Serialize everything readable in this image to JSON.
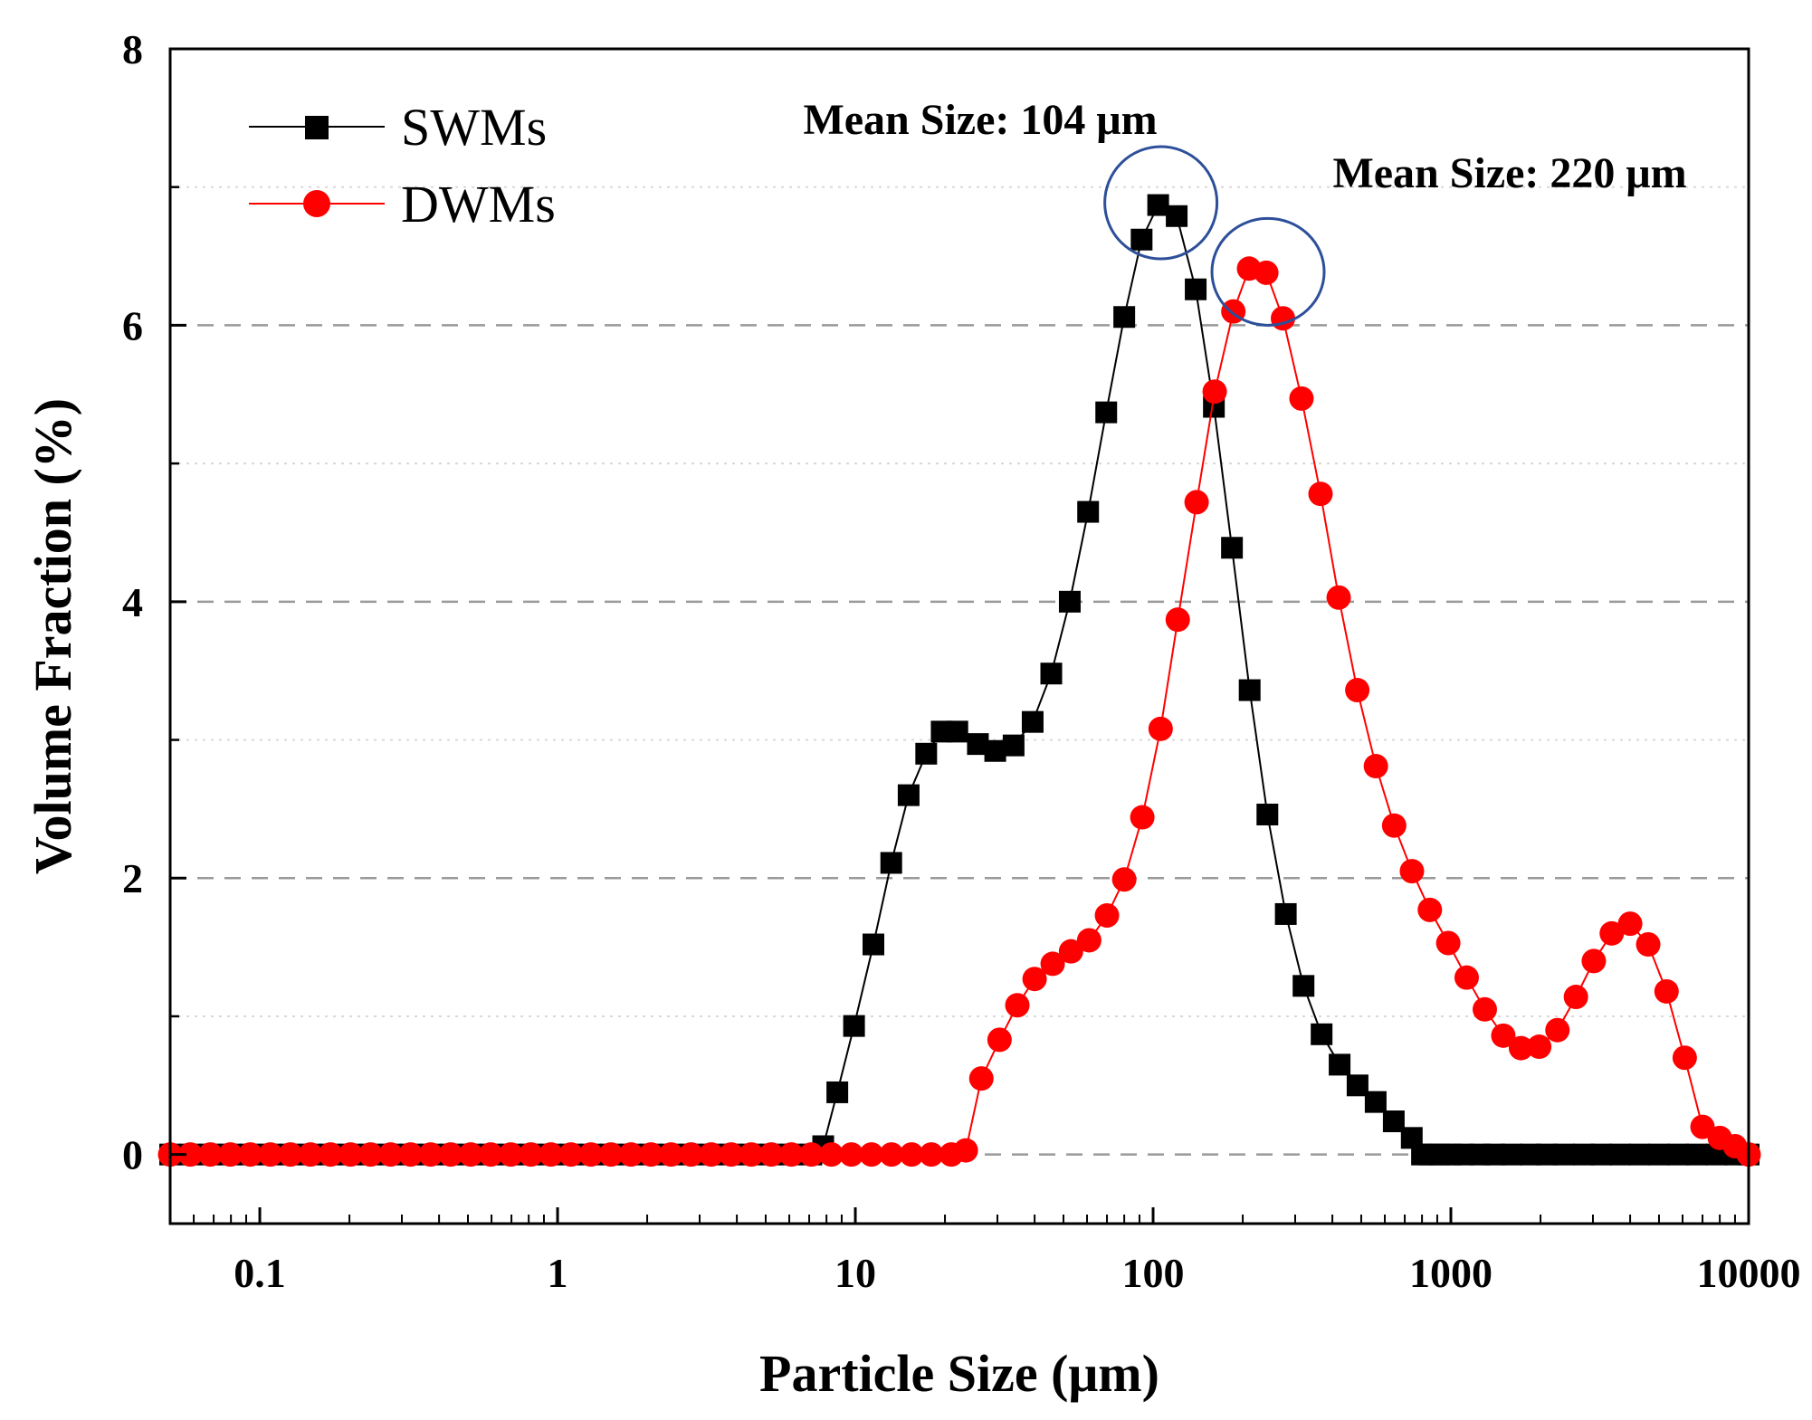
{
  "chart_data": {
    "type": "scatter",
    "xlabel": "Particle Size (μm)",
    "ylabel": "Volume  Fraction (%)",
    "xscale": "log",
    "xlim": [
      0.05,
      10000
    ],
    "ylim": [
      -0.5,
      8
    ],
    "x_ticks": [
      0.1,
      1,
      10,
      100,
      1000,
      10000
    ],
    "x_tick_labels": [
      "0.1",
      "1",
      "10",
      "100",
      "1000",
      "10000"
    ],
    "y_ticks": [
      0,
      2,
      4,
      6,
      8
    ],
    "y_tick_labels": [
      "0",
      "2",
      "4",
      "6",
      "8"
    ],
    "grid": "horizontal-dashed",
    "legend_position": "top-left",
    "series": [
      {
        "name": "SWMs",
        "color": "#000000",
        "marker": "square",
        "x": [
          0.05,
          0.0584,
          0.0682,
          0.0796,
          0.0929,
          0.1085,
          0.1267,
          0.1479,
          0.1727,
          0.2016,
          0.2354,
          0.2749,
          0.3209,
          0.3747,
          0.4375,
          0.5109,
          0.5965,
          0.6964,
          0.8132,
          0.9494,
          1.109,
          1.294,
          1.511,
          1.764,
          2.06,
          2.405,
          2.809,
          3.279,
          3.829,
          4.471,
          5.221,
          6.096,
          7.118,
          7.8,
          8.7,
          9.9,
          11.5,
          13.2,
          15.1,
          17.3,
          19.5,
          22.0,
          25.8,
          29.5,
          34.0,
          39.4,
          45.5,
          52.5,
          60.5,
          69.6,
          80.0,
          91.5,
          104,
          120,
          139,
          160,
          184,
          211,
          242,
          279,
          320,
          368,
          423,
          486,
          559,
          643,
          739,
          800,
          850,
          920,
          1000,
          1100,
          1250,
          1400,
          1600,
          1850,
          2100,
          2400,
          2800,
          3200,
          3700,
          4300,
          5000,
          5800,
          6700,
          7800,
          9000,
          10000
        ],
        "y": [
          0,
          0,
          0,
          0,
          0,
          0,
          0,
          0,
          0,
          0,
          0,
          0,
          0,
          0,
          0,
          0,
          0,
          0,
          0,
          0,
          0,
          0,
          0,
          0,
          0,
          0,
          0,
          0,
          0,
          0,
          0,
          0,
          0,
          0.06,
          0.45,
          0.93,
          1.52,
          2.11,
          2.6,
          2.9,
          3.06,
          3.06,
          2.97,
          2.92,
          2.96,
          3.13,
          3.48,
          4.0,
          4.65,
          5.37,
          6.06,
          6.62,
          6.87,
          6.79,
          6.26,
          5.41,
          4.39,
          3.36,
          2.46,
          1.74,
          1.22,
          0.87,
          0.65,
          0.5,
          0.38,
          0.24,
          0.12,
          0,
          0,
          0,
          0,
          0,
          0,
          0,
          0,
          0,
          0,
          0,
          0,
          0,
          0,
          0,
          0,
          0,
          0,
          0,
          0,
          0
        ]
      },
      {
        "name": "DWMs",
        "color": "#ff0000",
        "marker": "circle",
        "x": [
          0.05,
          0.0584,
          0.0682,
          0.0796,
          0.0929,
          0.1085,
          0.1267,
          0.1479,
          0.1727,
          0.2016,
          0.2354,
          0.2749,
          0.3209,
          0.3747,
          0.4375,
          0.5109,
          0.5965,
          0.6964,
          0.8132,
          0.9494,
          1.109,
          1.294,
          1.511,
          1.764,
          2.06,
          2.405,
          2.809,
          3.279,
          3.829,
          4.471,
          5.221,
          6.096,
          7.118,
          8.31,
          9.7,
          11.33,
          13.23,
          15.45,
          18.0,
          21.0,
          23.5,
          26.5,
          30.5,
          35.0,
          40.0,
          46.0,
          53.0,
          61.0,
          70.0,
          80.0,
          92.0,
          106,
          121,
          140,
          161,
          186,
          210,
          240,
          273,
          315,
          365,
          420,
          485,
          560,
          645,
          740,
          850,
          980,
          1130,
          1300,
          1500,
          1720,
          1980,
          2280,
          2630,
          3020,
          3470,
          4000,
          4600,
          5300,
          6100,
          7000,
          8000,
          9000,
          10000
        ],
        "y": [
          0,
          0,
          0,
          0,
          0,
          0,
          0,
          0,
          0,
          0,
          0,
          0,
          0,
          0,
          0,
          0,
          0,
          0,
          0,
          0,
          0,
          0,
          0,
          0,
          0,
          0,
          0,
          0,
          0,
          0,
          0,
          0,
          0,
          0,
          0,
          0,
          0,
          0,
          0,
          0,
          0.03,
          0.55,
          0.83,
          1.08,
          1.27,
          1.38,
          1.47,
          1.55,
          1.73,
          1.99,
          2.44,
          3.08,
          3.87,
          4.72,
          5.52,
          6.1,
          6.41,
          6.38,
          6.05,
          5.47,
          4.78,
          4.03,
          3.36,
          2.81,
          2.38,
          2.05,
          1.77,
          1.53,
          1.28,
          1.05,
          0.86,
          0.77,
          0.78,
          0.9,
          1.14,
          1.4,
          1.6,
          1.67,
          1.52,
          1.18,
          0.7,
          0.2,
          0.12,
          0.06,
          0
        ]
      }
    ],
    "annotations": [
      {
        "text": "Mean Size: 104 μm",
        "x": 104,
        "y": 6.88
      },
      {
        "text": "Mean Size: 220 μm",
        "x": 230,
        "y": 6.4
      }
    ]
  }
}
